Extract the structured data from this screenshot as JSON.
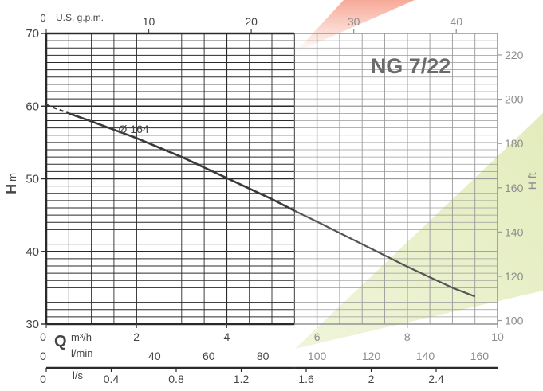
{
  "chart_data": {
    "type": "line",
    "title": "NG 7/22",
    "series": [
      {
        "name": "Ø 164",
        "x": [
          0,
          0.5,
          1,
          2,
          3,
          4,
          5,
          5.5,
          6,
          7,
          8,
          9,
          9.5
        ],
        "y": [
          60.2,
          59.0,
          57.9,
          55.6,
          53.0,
          50.1,
          47.2,
          45.6,
          44.1,
          41.0,
          37.9,
          35.0,
          33.8
        ],
        "dashed_until_x": 0.5
      }
    ],
    "axes": {
      "h_m": {
        "label_bold": "H",
        "label_unit": "m",
        "range": [
          30,
          70
        ],
        "ticks": [
          30,
          40,
          50,
          60,
          70
        ],
        "tick_labels": [
          "30",
          "40",
          "50",
          "60",
          "70"
        ]
      },
      "h_ft": {
        "label": "H ft",
        "range_ft": [
          98.4,
          229.7
        ],
        "ticks": [
          100,
          120,
          140,
          160,
          180,
          200,
          220
        ],
        "tick_labels": [
          "100",
          "120",
          "140",
          "160",
          "180",
          "200",
          "220"
        ]
      },
      "q_m3h": {
        "label_bold": "Q",
        "label_unit": "m³/h",
        "range": [
          0,
          10
        ],
        "ticks": [
          0,
          2,
          4,
          6,
          8,
          10
        ],
        "tick_labels": [
          "0",
          "2",
          "4",
          "6",
          "8",
          "10"
        ]
      },
      "q_lmin": {
        "label": "l/min",
        "ticks": [
          0,
          40,
          60,
          80,
          100,
          120,
          140,
          160
        ],
        "tick_labels": [
          "0",
          "40",
          "60",
          "80",
          "100",
          "120",
          "140",
          "160"
        ]
      },
      "q_ls": {
        "label": "l/s",
        "ticks": [
          0,
          0.4,
          0.8,
          1.2,
          1.6,
          2,
          2.4
        ],
        "tick_labels": [
          "0",
          "0.4",
          "0.8",
          "1.2",
          "1.6",
          "2",
          "2.4"
        ]
      },
      "q_usgpm": {
        "label": "U.S. g.p.m.",
        "ticks": [
          0,
          10,
          20,
          30,
          40
        ],
        "tick_labels": [
          "0",
          "10",
          "20",
          "30",
          "40"
        ]
      }
    },
    "grid": true,
    "colors": {
      "curve": "#3a3a3a",
      "grid_dark": "#2a2a2a",
      "grid_light": "#9a9a9a",
      "title": "#6b6b6b",
      "label": "#444444",
      "light_label": "#8c8c8c",
      "fan_red": "#f6a08c",
      "fan_green": "#e3ecbc"
    }
  }
}
